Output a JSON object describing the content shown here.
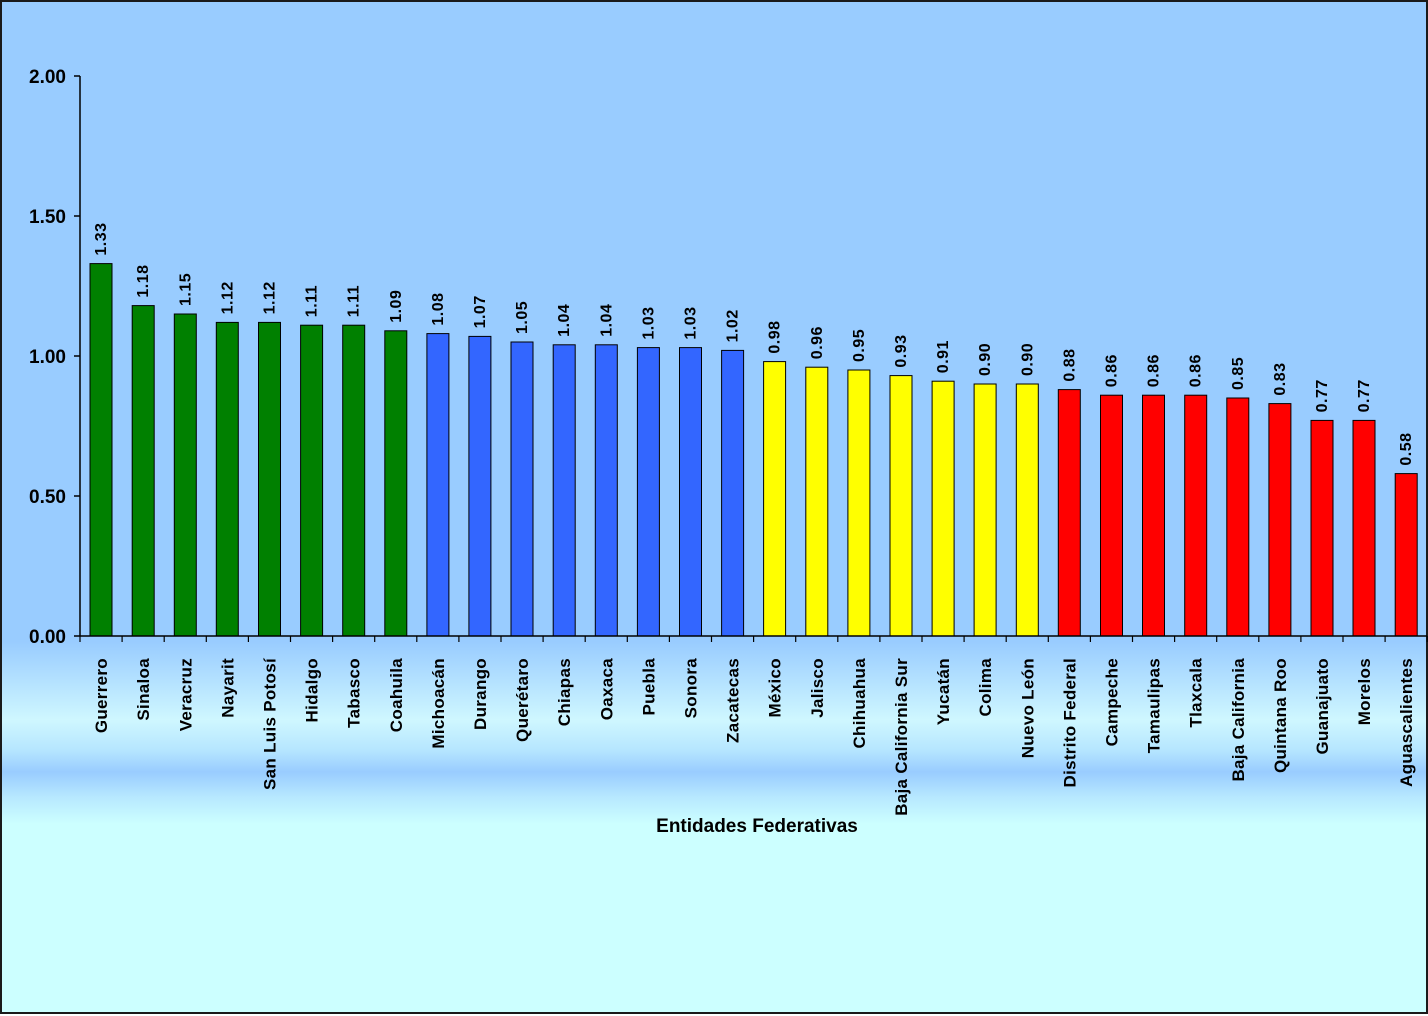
{
  "chart_data": {
    "type": "bar",
    "title": "",
    "xlabel": "Entidades  Federativas",
    "ylabel": "",
    "ylim": [
      0,
      2
    ],
    "yticks": [
      "0.00",
      "0.50",
      "1.00",
      "1.50",
      "2.00"
    ],
    "grid": false,
    "legend": "none",
    "categories": [
      "Guerrero",
      "Sinaloa",
      "Veracruz",
      "Nayarit",
      "San Luis Potosí",
      "Hidalgo",
      "Tabasco",
      "Coahuila",
      "Michoacán",
      "Durango",
      "Querétaro",
      "Chiapas",
      "Oaxaca",
      "Puebla",
      "Sonora",
      "Zacatecas",
      "México",
      "Jalisco",
      "Chihuahua",
      "Baja California Sur",
      "Yucatán",
      "Colima",
      "Nuevo León",
      "Distrito Federal",
      "Campeche",
      "Tamaulipas",
      "Tlaxcala",
      "Baja California",
      "Quintana Roo",
      "Guanajuato",
      "Morelos",
      "Aguascalientes"
    ],
    "values": [
      1.33,
      1.18,
      1.15,
      1.12,
      1.12,
      1.11,
      1.11,
      1.09,
      1.08,
      1.07,
      1.05,
      1.04,
      1.04,
      1.03,
      1.03,
      1.02,
      0.98,
      0.96,
      0.95,
      0.93,
      0.91,
      0.9,
      0.9,
      0.88,
      0.86,
      0.86,
      0.86,
      0.85,
      0.83,
      0.77,
      0.77,
      0.58
    ],
    "value_labels": [
      "1.33",
      "1.18",
      "1.15",
      "1.12",
      "1.12",
      "1.11",
      "1.11",
      "1.09",
      "1.08",
      "1.07",
      "1.05",
      "1.04",
      "1.04",
      "1.03",
      "1.03",
      "1.02",
      "0.98",
      "0.96",
      "0.95",
      "0.93",
      "0.91",
      "0.90",
      "0.90",
      "0.88",
      "0.86",
      "0.86",
      "0.86",
      "0.85",
      "0.83",
      "0.77",
      "0.77",
      "0.58"
    ],
    "bar_colors": [
      "#008000",
      "#008000",
      "#008000",
      "#008000",
      "#008000",
      "#008000",
      "#008000",
      "#008000",
      "#3366ff",
      "#3366ff",
      "#3366ff",
      "#3366ff",
      "#3366ff",
      "#3366ff",
      "#3366ff",
      "#3366ff",
      "#ffff00",
      "#ffff00",
      "#ffff00",
      "#ffff00",
      "#ffff00",
      "#ffff00",
      "#ffff00",
      "#ff0000",
      "#ff0000",
      "#ff0000",
      "#ff0000",
      "#ff0000",
      "#ff0000",
      "#ff0000",
      "#ff0000",
      "#ff0000"
    ],
    "background_color": "#99ccff"
  }
}
